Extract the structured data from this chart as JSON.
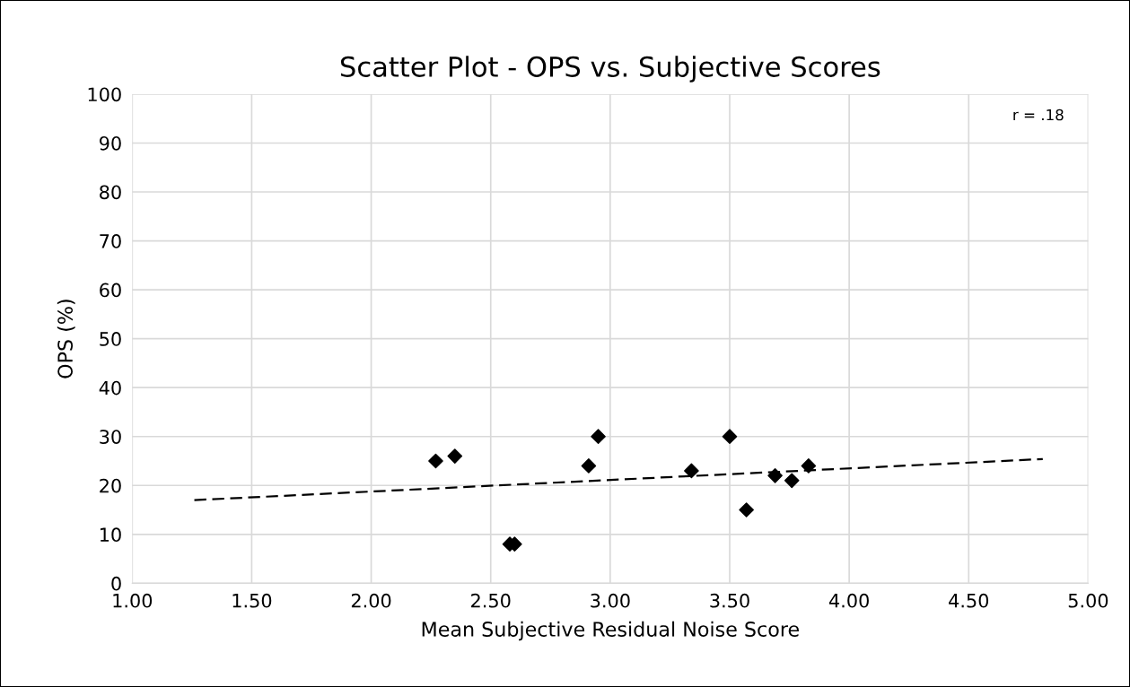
{
  "chart_data": {
    "type": "scatter",
    "title": "Scatter Plot - OPS vs. Subjective Scores",
    "xlabel": "Mean Subjective Residual Noise Score",
    "ylabel": "OPS (%)",
    "series": [
      {
        "color": "#000000",
        "marker": "diamond",
        "x": [
          2.27,
          2.35,
          2.58,
          2.6,
          2.91,
          2.95,
          3.34,
          3.5,
          3.57,
          3.69,
          3.76,
          3.83
        ],
        "values": [
          25,
          26,
          8,
          8,
          24,
          30,
          23,
          30,
          15,
          22,
          21,
          24
        ]
      },
      {
        "type": "line",
        "color": "#000000",
        "line_style": "dashed",
        "marker": "none",
        "x": [
          1.26,
          4.81
        ],
        "values": [
          17,
          25.4
        ]
      }
    ],
    "annotations": [
      "r = .18"
    ],
    "xlim": [
      1.0,
      5.0
    ],
    "xticks": [
      {
        "value": 1.0,
        "label": "1.00"
      },
      {
        "value": 1.5,
        "label": "1.50"
      },
      {
        "value": 2.0,
        "label": "2.00"
      },
      {
        "value": 2.5,
        "label": "2.50"
      },
      {
        "value": 3.0,
        "label": "3.00"
      },
      {
        "value": 3.5,
        "label": "3.50"
      },
      {
        "value": 4.0,
        "label": "4.00"
      },
      {
        "value": 4.5,
        "label": "4.50"
      },
      {
        "value": 5.0,
        "label": "5.00"
      }
    ],
    "ylim": [
      0,
      100
    ],
    "yticks": [
      0,
      10,
      20,
      30,
      40,
      50,
      60,
      70,
      80,
      90,
      100
    ],
    "grid": true,
    "legend": false
  }
}
